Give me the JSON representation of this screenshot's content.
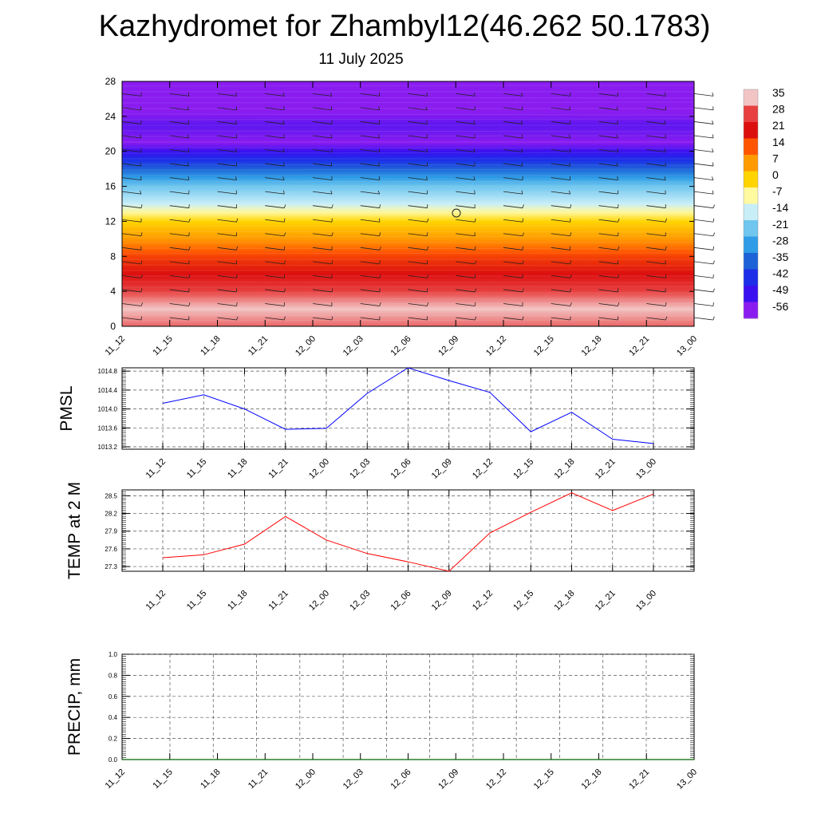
{
  "title": "Kazhydromet for Zhambyl12(46.262 50.1783)",
  "subtitle": "11 July 2025",
  "time_labels": [
    "11_12",
    "11_15",
    "11_18",
    "11_21",
    "12_00",
    "12_03",
    "12_06",
    "12_09",
    "12_12",
    "12_15",
    "12_18",
    "12_21",
    "13_00"
  ],
  "colorbar": {
    "labels": [
      "35",
      "28",
      "21",
      "14",
      "7",
      "0",
      "-7",
      "-14",
      "-21",
      "-28",
      "-35",
      "-42",
      "-49",
      "-56"
    ],
    "colors": [
      "#f2c4c4",
      "#e84040",
      "#dc0f0f",
      "#ff5500",
      "#ff9a00",
      "#ffd400",
      "#fff9a0",
      "#c8eef8",
      "#6fc6ee",
      "#2e9ce6",
      "#1e62d8",
      "#1c2ee8",
      "#3a10f0",
      "#8a1cf0"
    ]
  },
  "chart_data": [
    {
      "type": "heatmap",
      "name": "height-time-section",
      "x": [
        "11_12",
        "11_15",
        "11_18",
        "11_21",
        "12_00",
        "12_03",
        "12_06",
        "12_09",
        "12_12",
        "12_15",
        "12_18",
        "12_21",
        "13_00"
      ],
      "ylim": [
        0,
        28
      ],
      "yticks": [
        0,
        4,
        8,
        12,
        16,
        20,
        24,
        28
      ],
      "colorbar_range": [
        -56,
        35
      ],
      "profile": [
        {
          "height": 0,
          "value": 30
        },
        {
          "height": 2,
          "value": 35
        },
        {
          "height": 4,
          "value": 28
        },
        {
          "height": 6,
          "value": 21
        },
        {
          "height": 8,
          "value": 16
        },
        {
          "height": 10,
          "value": 7
        },
        {
          "height": 12,
          "value": 0
        },
        {
          "height": 13.5,
          "value": -10
        },
        {
          "height": 14,
          "value": -14
        },
        {
          "height": 16,
          "value": -21
        },
        {
          "height": 18,
          "value": -35
        },
        {
          "height": 20,
          "value": -49
        },
        {
          "height": 21,
          "value": -56
        },
        {
          "height": 23,
          "value": -52
        },
        {
          "height": 25,
          "value": -58
        },
        {
          "height": 28,
          "value": -60
        }
      ]
    },
    {
      "type": "line",
      "ylabel": "PMSL",
      "categories": [
        "11_12",
        "11_15",
        "11_18",
        "11_21",
        "12_00",
        "12_03",
        "12_06",
        "12_09",
        "12_12",
        "12_15",
        "12_18",
        "12_21",
        "13_00"
      ],
      "values": [
        1014.12,
        1014.3,
        1014.0,
        1013.57,
        1013.59,
        1014.33,
        1014.87,
        1014.6,
        1014.35,
        1013.52,
        1013.93,
        1013.36,
        1013.27
      ],
      "ylim": [
        1013.15,
        1014.87
      ],
      "yticks": [
        "1013.2",
        "1013.6",
        "1014.0",
        "1014.4",
        "1014.8"
      ],
      "color": "#0000ff"
    },
    {
      "type": "line",
      "ylabel": "TEMP at 2 M",
      "categories": [
        "11_12",
        "11_15",
        "11_18",
        "11_21",
        "12_00",
        "12_03",
        "12_06",
        "12_09",
        "12_12",
        "12_15",
        "12_18",
        "12_21",
        "13_00"
      ],
      "values": [
        27.45,
        27.5,
        27.68,
        28.15,
        27.75,
        27.52,
        27.38,
        27.22,
        27.87,
        28.22,
        28.55,
        28.25,
        28.53
      ],
      "ylim": [
        27.22,
        28.6
      ],
      "yticks": [
        "27.3",
        "27.6",
        "27.9",
        "28.2",
        "28.5"
      ],
      "color": "#ff0000"
    },
    {
      "type": "line",
      "ylabel": "PRECIP, mm",
      "categories": [
        "11_12",
        "11_15",
        "11_18",
        "11_21",
        "12_00",
        "12_03",
        "12_06",
        "12_09",
        "12_12",
        "12_15",
        "12_18",
        "12_21",
        "13_00"
      ],
      "values": [
        0,
        0,
        0,
        0,
        0,
        0,
        0,
        0,
        0,
        0,
        0,
        0,
        0
      ],
      "ylim": [
        0,
        1.0
      ],
      "yticks": [
        "0.0",
        "0.2",
        "0.4",
        "0.6",
        "0.8",
        "1.0"
      ],
      "color": "#006400"
    }
  ]
}
